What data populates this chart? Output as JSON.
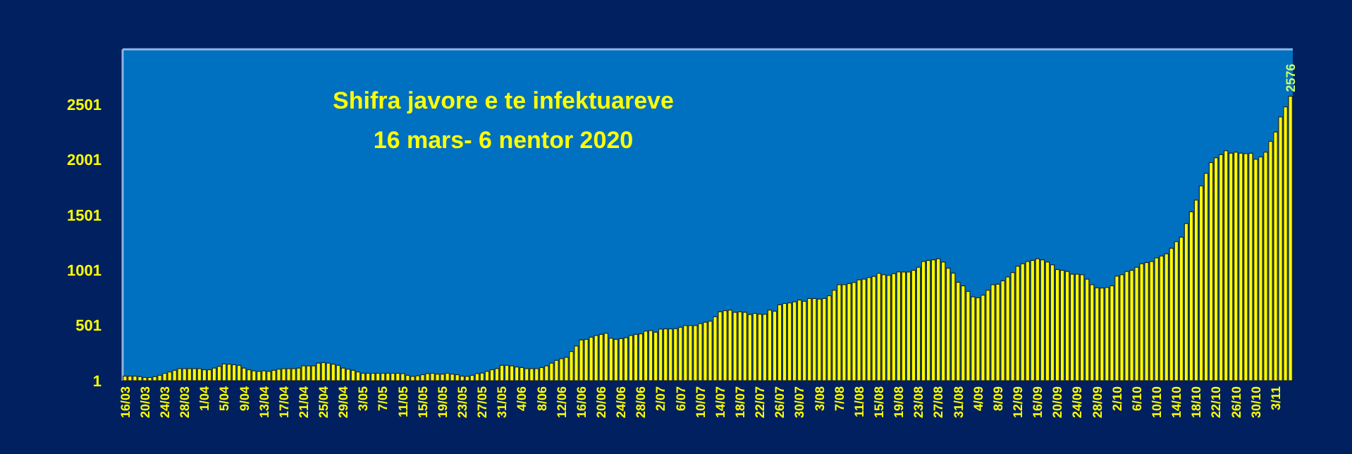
{
  "chart_data": {
    "type": "bar",
    "title": "Shifra javore e te infektuareve",
    "subtitle": "16 mars- 6 nentor 2020",
    "categories": [
      "16/03",
      null,
      null,
      null,
      "20/03",
      null,
      null,
      null,
      "24/03",
      null,
      null,
      null,
      "28/03",
      null,
      null,
      null,
      "1/04",
      null,
      null,
      null,
      "5/04",
      null,
      null,
      null,
      "9/04",
      null,
      null,
      null,
      "13/04",
      null,
      null,
      null,
      "17/04",
      null,
      null,
      null,
      "21/04",
      null,
      null,
      null,
      "25/04",
      null,
      null,
      null,
      "29/04",
      null,
      null,
      null,
      "3/05",
      null,
      null,
      null,
      "7/05",
      null,
      null,
      null,
      "11/05",
      null,
      null,
      null,
      "15/05",
      null,
      null,
      null,
      "19/05",
      null,
      null,
      null,
      "23/05",
      null,
      null,
      null,
      "27/05",
      null,
      null,
      null,
      "31/05",
      null,
      null,
      null,
      "4/06",
      null,
      null,
      null,
      "8/06",
      null,
      null,
      null,
      "12/06",
      null,
      null,
      null,
      "16/06",
      null,
      null,
      null,
      "20/06",
      null,
      null,
      null,
      "24/06",
      null,
      null,
      null,
      "28/06",
      null,
      null,
      null,
      "2/07",
      null,
      null,
      null,
      "6/07",
      null,
      null,
      null,
      "10/07",
      null,
      null,
      null,
      "14/07",
      null,
      null,
      null,
      "18/07",
      null,
      null,
      null,
      "22/07",
      null,
      null,
      null,
      "26/07",
      null,
      null,
      null,
      "30/07",
      null,
      null,
      null,
      "3/08",
      null,
      null,
      null,
      "7/08",
      null,
      null,
      null,
      "11/08",
      null,
      null,
      null,
      "15/08",
      null,
      null,
      null,
      "19/08",
      null,
      null,
      null,
      "23/08",
      null,
      null,
      null,
      "27/08",
      null,
      null,
      null,
      "31/08",
      null,
      null,
      null,
      "4/09",
      null,
      null,
      null,
      "8/09",
      null,
      null,
      null,
      "12/09",
      null,
      null,
      null,
      "16/09",
      null,
      null,
      null,
      "20/09",
      null,
      null,
      null,
      "24/09",
      null,
      null,
      null,
      "28/09",
      null,
      null,
      null,
      "2/10",
      null,
      null,
      null,
      "6/10",
      null,
      null,
      null,
      "10/10",
      null,
      null,
      null,
      "14/10",
      null,
      null,
      null,
      "18/10",
      null,
      null,
      null,
      "22/10",
      null,
      null,
      null,
      "26/10",
      null,
      null,
      null,
      "30/10",
      null,
      null,
      null,
      "3/11",
      null,
      null,
      null
    ],
    "values": [
      42,
      42,
      42,
      38,
      30,
      30,
      38,
      50,
      68,
      80,
      95,
      110,
      110,
      110,
      110,
      110,
      100,
      100,
      115,
      130,
      153,
      150,
      145,
      140,
      115,
      100,
      90,
      85,
      90,
      85,
      95,
      105,
      110,
      110,
      110,
      115,
      135,
      135,
      135,
      160,
      165,
      160,
      150,
      140,
      115,
      105,
      95,
      80,
      68,
      68,
      68,
      68,
      68,
      68,
      68,
      68,
      65,
      50,
      40,
      45,
      55,
      65,
      68,
      60,
      60,
      68,
      60,
      55,
      42,
      40,
      50,
      65,
      70,
      85,
      100,
      110,
      140,
      140,
      135,
      125,
      120,
      110,
      110,
      110,
      120,
      135,
      160,
      185,
      200,
      212,
      265,
      315,
      370,
      375,
      395,
      410,
      420,
      430,
      385,
      375,
      382,
      390,
      410,
      420,
      425,
      450,
      455,
      440,
      468,
      470,
      470,
      472,
      485,
      500,
      500,
      500,
      518,
      530,
      540,
      580,
      625,
      635,
      640,
      620,
      625,
      620,
      600,
      610,
      603,
      602,
      640,
      630,
      688,
      700,
      705,
      715,
      731,
      720,
      745,
      745,
      740,
      745,
      770,
      820,
      870,
      870,
      880,
      890,
      914,
      920,
      935,
      945,
      973,
      960,
      955,
      970,
      986,
      985,
      985,
      1000,
      1028,
      1080,
      1090,
      1095,
      1105,
      1075,
      1020,
      975,
      892,
      860,
      810,
      760,
      752,
      775,
      820,
      870,
      875,
      905,
      940,
      980,
      1037,
      1060,
      1080,
      1090,
      1105,
      1095,
      1075,
      1050,
      1007,
      1000,
      990,
      965,
      965,
      960,
      920,
      870,
      842,
      840,
      845,
      860,
      948,
      960,
      990,
      1000,
      1028,
      1060,
      1070,
      1080,
      1113,
      1130,
      1150,
      1200,
      1260,
      1300,
      1424,
      1530,
      1636,
      1764,
      1878,
      1976,
      2019,
      2048,
      2083,
      2061,
      2070,
      2061,
      2057,
      2060,
      2006,
      2027,
      2070,
      2168,
      2253,
      2389,
      2480,
      2576
    ],
    "value_labels": [
      null,
      null,
      null,
      null,
      null,
      null,
      null,
      null,
      null,
      null,
      null,
      null,
      null,
      null,
      null,
      null,
      null,
      null,
      null,
      null,
      null,
      null,
      null,
      null,
      null,
      null,
      null,
      null,
      null,
      null,
      null,
      null,
      null,
      null,
      null,
      null,
      null,
      null,
      null,
      null,
      null,
      null,
      null,
      null,
      null,
      null,
      null,
      null,
      null,
      null,
      null,
      null,
      null,
      null,
      null,
      null,
      null,
      null,
      null,
      null,
      null,
      null,
      null,
      null,
      null,
      null,
      null,
      null,
      null,
      null,
      null,
      null,
      null,
      null,
      null,
      null,
      null,
      null,
      null,
      null,
      null,
      null,
      null,
      null,
      null,
      null,
      null,
      null,
      null,
      null,
      null,
      null,
      null,
      null,
      null,
      null,
      null,
      null,
      null,
      null,
      null,
      null,
      null,
      null,
      null,
      null,
      null,
      null,
      null,
      null,
      null,
      null,
      null,
      null,
      null,
      null,
      null,
      null,
      null,
      null,
      null,
      null,
      null,
      null,
      null,
      null,
      null,
      null,
      null,
      null,
      null,
      null,
      null,
      null,
      null,
      null,
      null,
      null,
      null,
      null,
      null,
      null,
      null,
      null,
      null,
      null,
      null,
      null,
      null,
      null,
      null,
      null,
      null,
      null,
      null,
      null,
      null,
      null,
      null,
      null,
      null,
      null,
      null,
      null,
      null,
      null,
      null,
      null,
      null,
      null,
      null,
      null,
      null,
      null,
      null,
      null,
      null,
      null,
      null,
      null,
      null,
      null,
      null,
      null,
      null,
      null,
      null,
      null,
      null,
      null,
      null,
      null,
      null,
      null,
      null,
      null,
      null,
      null,
      null,
      null,
      null,
      null,
      null,
      null,
      null,
      null,
      null,
      null,
      null,
      null,
      null,
      null,
      null,
      null,
      null,
      null,
      null,
      null,
      null,
      null,
      null,
      null,
      null,
      null,
      null,
      null,
      null,
      null,
      null,
      null,
      null,
      null,
      null,
      null,
      null,
      "2576"
    ],
    "color": "#ffff00",
    "ylim": [
      1,
      3001
    ],
    "yticks": [
      1,
      501,
      1001,
      1501,
      2001,
      2501
    ],
    "grid": false
  }
}
